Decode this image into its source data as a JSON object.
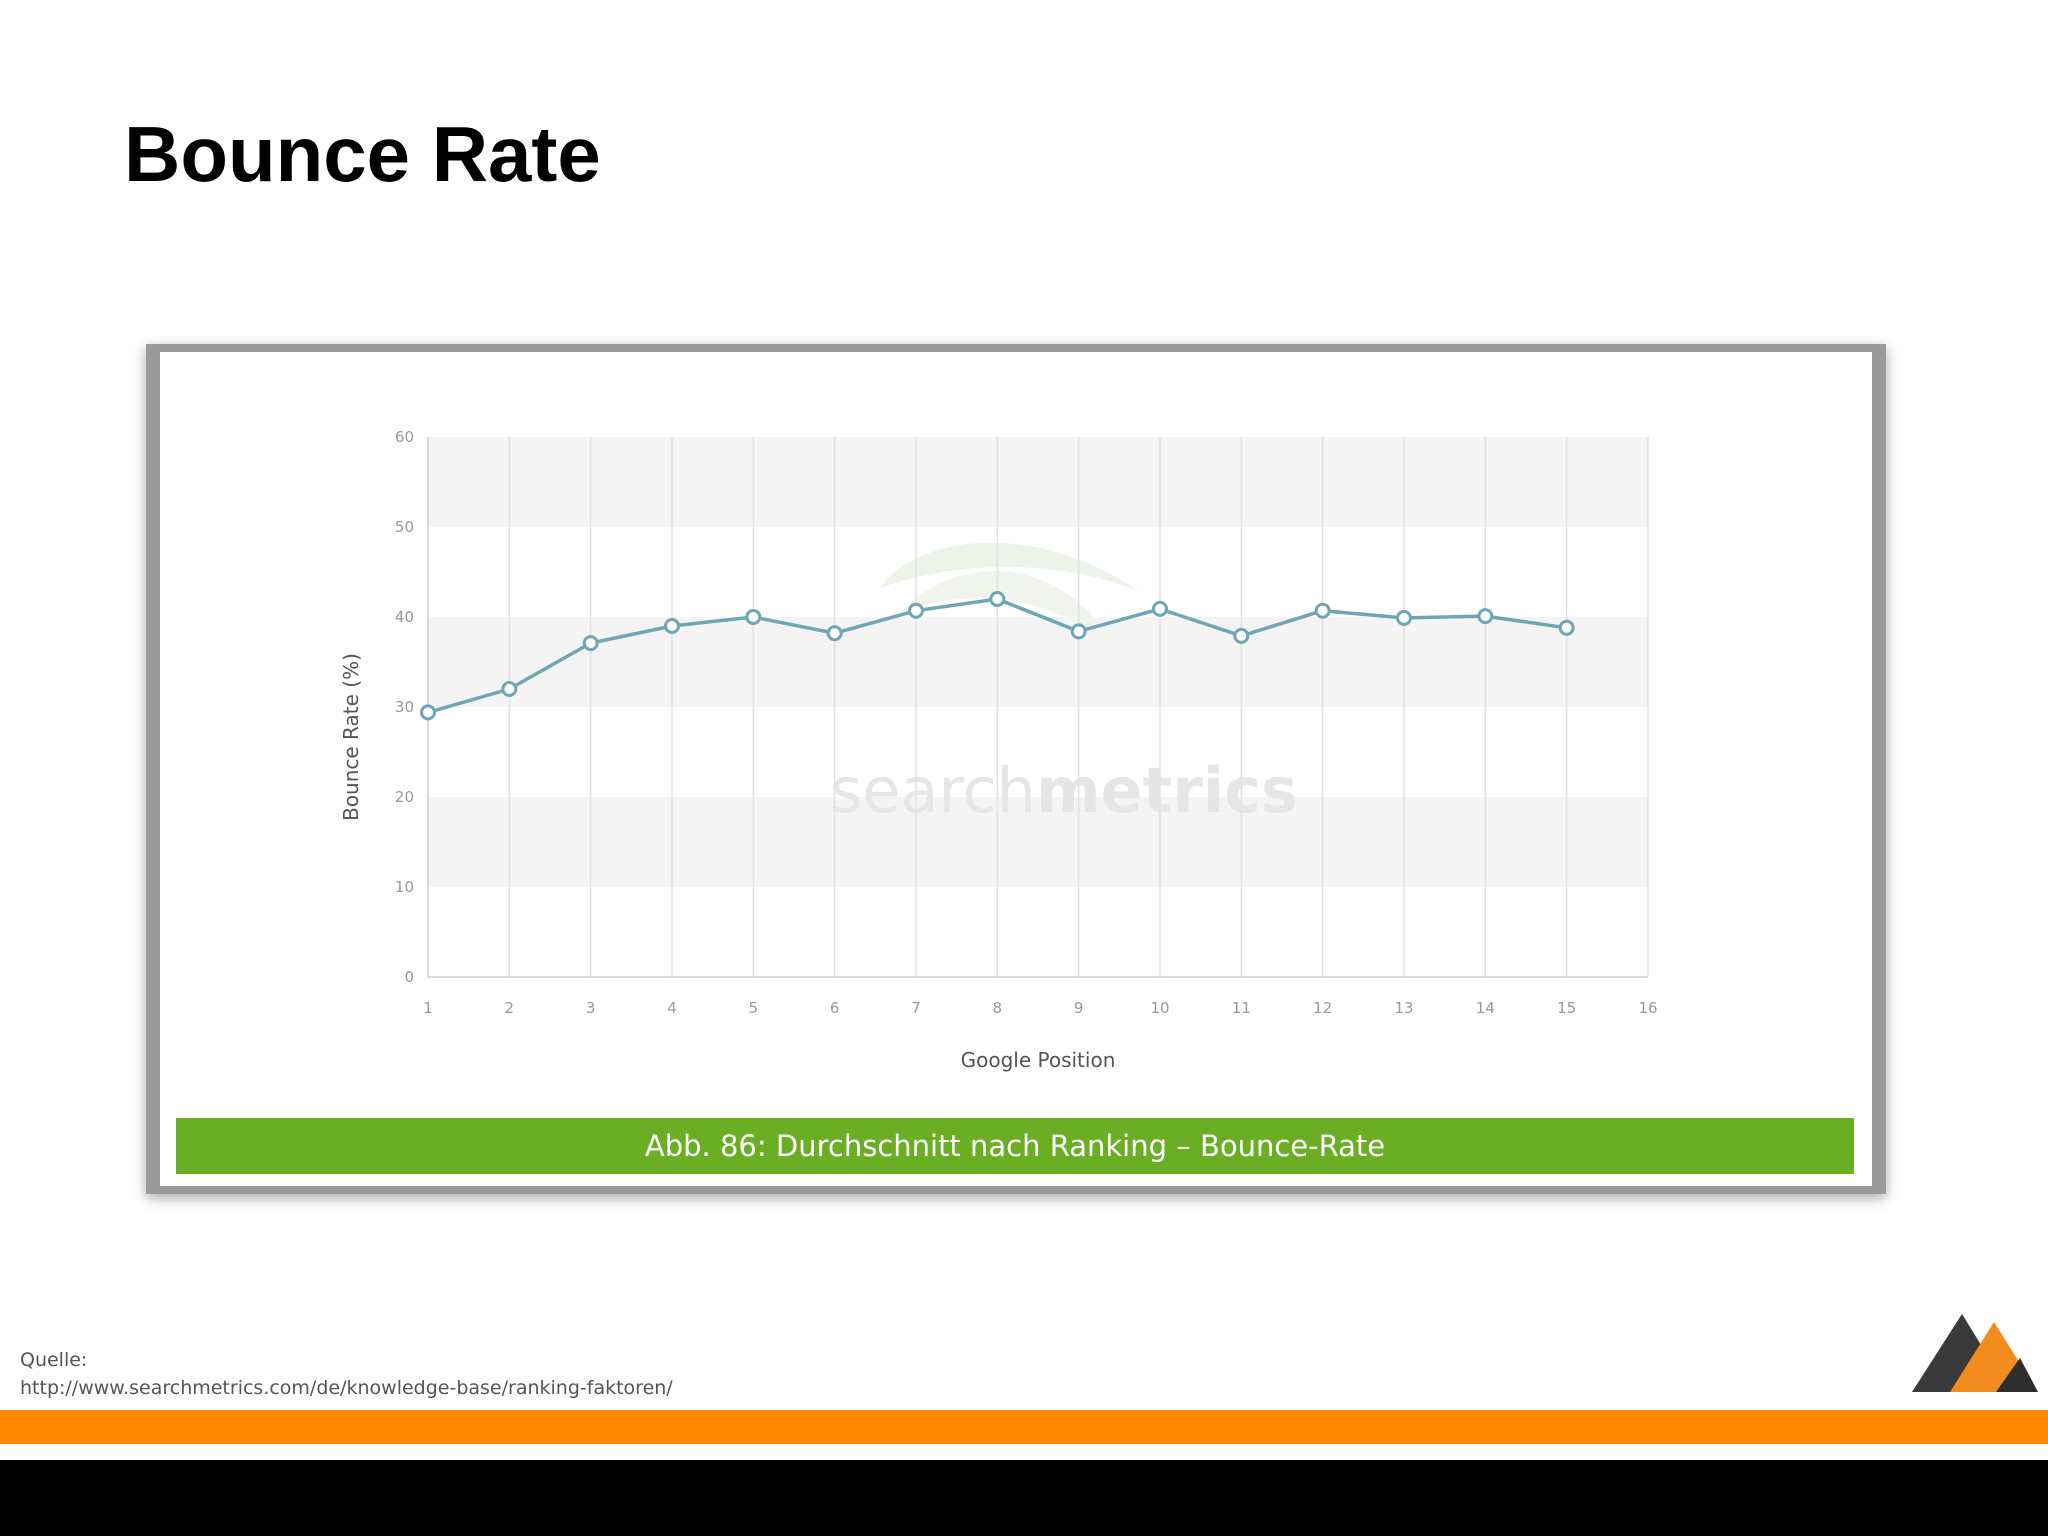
{
  "slide": {
    "title": "Bounce Rate",
    "caption": "Abb. 86: Durchschnitt nach Ranking – Bounce-Rate",
    "source_label": "Quelle:",
    "source_url": "http://www.searchmetrics.com/de/knowledge-base/ranking-faktoren/",
    "watermark_light": "search",
    "watermark_bold": "metrics"
  },
  "colors": {
    "series": "#6fa6b4",
    "caption_bg": "#6aaf23",
    "orange_bar": "#ff8a00",
    "band": "#f4f4f4"
  },
  "logo_icon": "mountain-logo-icon",
  "chart_data": {
    "type": "line",
    "xlabel": "Google Position",
    "ylabel": "Bounce Rate (%)",
    "xlim": [
      1,
      16
    ],
    "ylim": [
      0,
      60
    ],
    "xticks": [
      "1",
      "2",
      "3",
      "4",
      "5",
      "6",
      "7",
      "8",
      "9",
      "10",
      "11",
      "12",
      "13",
      "14",
      "15",
      "16"
    ],
    "yticks": [
      "0",
      "10",
      "20",
      "30",
      "40",
      "50",
      "60"
    ],
    "grid": "vertical lines, alternating horizontal bands",
    "series": [
      {
        "x": [
          1,
          2,
          3,
          4,
          5,
          6,
          7,
          8,
          9,
          10,
          11,
          12,
          13,
          14,
          15
        ],
        "values": [
          29.4,
          32.0,
          37.1,
          39.0,
          40.0,
          38.2,
          40.7,
          42.0,
          38.4,
          40.9,
          37.9,
          40.7,
          39.9,
          40.1,
          38.8
        ]
      }
    ]
  }
}
